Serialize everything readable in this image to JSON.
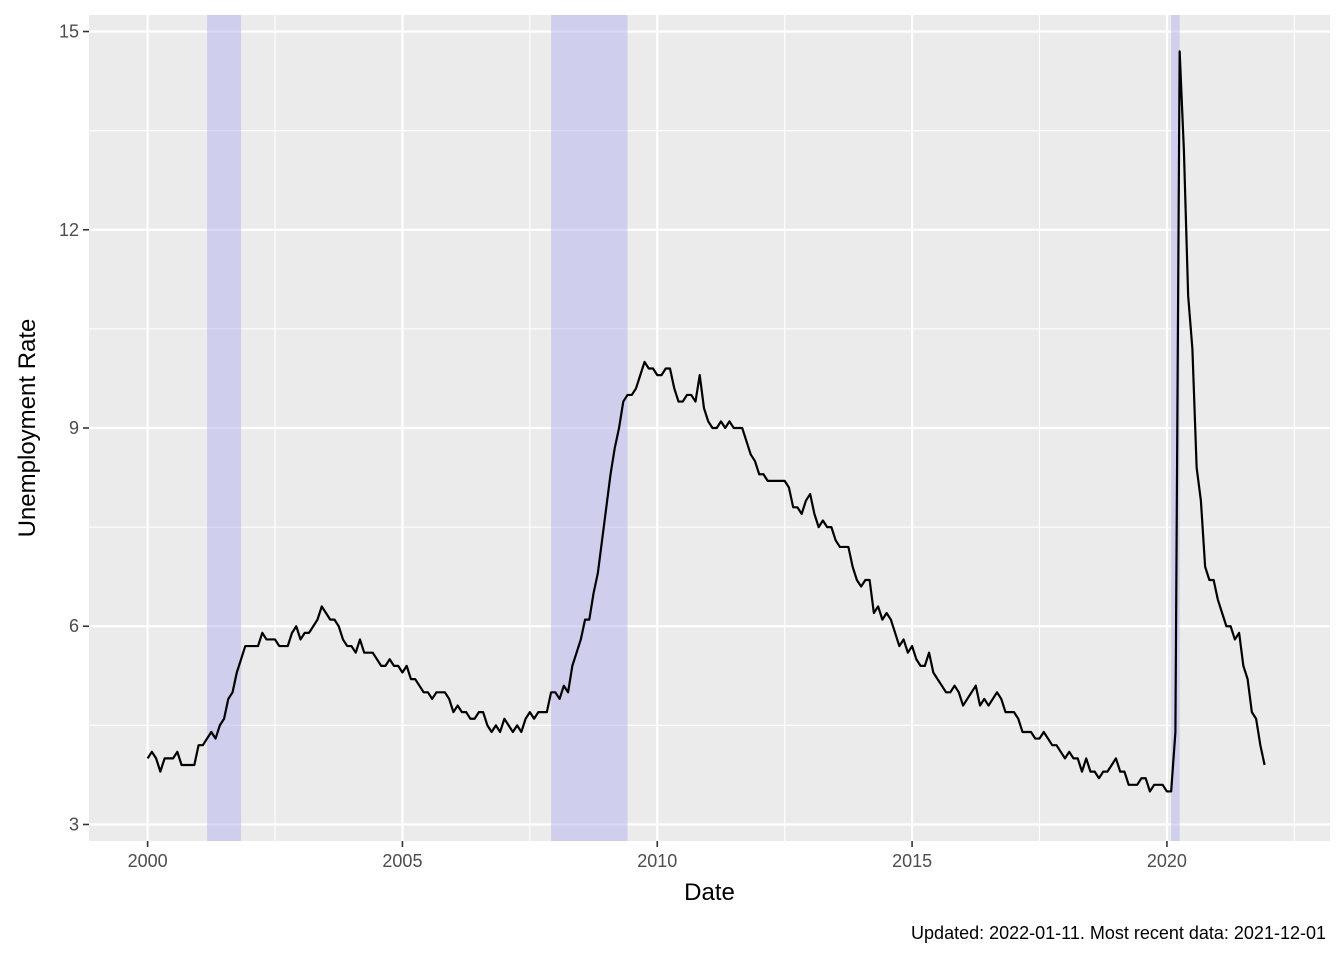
{
  "chart_data": {
    "type": "line",
    "title": "",
    "xlabel": "Date",
    "ylabel": "Unemployment Rate",
    "caption": "Updated: 2022-01-11.  Most recent data: 2021-12-01",
    "x_unit": "year",
    "xlim": [
      1998.85,
      2023.2
    ],
    "ylim": [
      2.75,
      15.25
    ],
    "x_ticks": [
      2000,
      2005,
      2010,
      2015,
      2020
    ],
    "x_tick_labels": [
      "2000",
      "2005",
      "2010",
      "2015",
      "2020"
    ],
    "y_ticks": [
      3,
      6,
      9,
      12,
      15
    ],
    "y_tick_labels": [
      "3",
      "6",
      "9",
      "12",
      "15"
    ],
    "grid": true,
    "legend": "none",
    "colors": {
      "panel": "#ebebeb",
      "grid": "#ffffff",
      "line": "#000000",
      "recession": "#b3b3f0"
    },
    "recessions": [
      {
        "start": "2001-03-01",
        "end": "2001-11-01"
      },
      {
        "start": "2007-12-01",
        "end": "2009-06-01"
      },
      {
        "start": "2020-02-01",
        "end": "2020-04-01"
      }
    ],
    "series": [
      {
        "start": "2000-01",
        "frequency": "monthly",
        "values": [
          4.0,
          4.1,
          4.0,
          3.8,
          4.0,
          4.0,
          4.0,
          4.1,
          3.9,
          3.9,
          3.9,
          3.9,
          4.2,
          4.2,
          4.3,
          4.4,
          4.3,
          4.5,
          4.6,
          4.9,
          5.0,
          5.3,
          5.5,
          5.7,
          5.7,
          5.7,
          5.7,
          5.9,
          5.8,
          5.8,
          5.8,
          5.7,
          5.7,
          5.7,
          5.9,
          6.0,
          5.8,
          5.9,
          5.9,
          6.0,
          6.1,
          6.3,
          6.2,
          6.1,
          6.1,
          6.0,
          5.8,
          5.7,
          5.7,
          5.6,
          5.8,
          5.6,
          5.6,
          5.6,
          5.5,
          5.4,
          5.4,
          5.5,
          5.4,
          5.4,
          5.3,
          5.4,
          5.2,
          5.2,
          5.1,
          5.0,
          5.0,
          4.9,
          5.0,
          5.0,
          5.0,
          4.9,
          4.7,
          4.8,
          4.7,
          4.7,
          4.6,
          4.6,
          4.7,
          4.7,
          4.5,
          4.4,
          4.5,
          4.4,
          4.6,
          4.5,
          4.4,
          4.5,
          4.4,
          4.6,
          4.7,
          4.6,
          4.7,
          4.7,
          4.7,
          5.0,
          5.0,
          4.9,
          5.1,
          5.0,
          5.4,
          5.6,
          5.8,
          6.1,
          6.1,
          6.5,
          6.8,
          7.3,
          7.8,
          8.3,
          8.7,
          9.0,
          9.4,
          9.5,
          9.5,
          9.6,
          9.8,
          10.0,
          9.9,
          9.9,
          9.8,
          9.8,
          9.9,
          9.9,
          9.6,
          9.4,
          9.4,
          9.5,
          9.5,
          9.4,
          9.8,
          9.3,
          9.1,
          9.0,
          9.0,
          9.1,
          9.0,
          9.1,
          9.0,
          9.0,
          9.0,
          8.8,
          8.6,
          8.5,
          8.3,
          8.3,
          8.2,
          8.2,
          8.2,
          8.2,
          8.2,
          8.1,
          7.8,
          7.8,
          7.7,
          7.9,
          8.0,
          7.7,
          7.5,
          7.6,
          7.5,
          7.5,
          7.3,
          7.2,
          7.2,
          7.2,
          6.9,
          6.7,
          6.6,
          6.7,
          6.7,
          6.2,
          6.3,
          6.1,
          6.2,
          6.1,
          5.9,
          5.7,
          5.8,
          5.6,
          5.7,
          5.5,
          5.4,
          5.4,
          5.6,
          5.3,
          5.2,
          5.1,
          5.0,
          5.0,
          5.1,
          5.0,
          4.8,
          4.9,
          5.0,
          5.1,
          4.8,
          4.9,
          4.8,
          4.9,
          5.0,
          4.9,
          4.7,
          4.7,
          4.7,
          4.6,
          4.4,
          4.4,
          4.4,
          4.3,
          4.3,
          4.4,
          4.3,
          4.2,
          4.2,
          4.1,
          4.0,
          4.1,
          4.0,
          4.0,
          3.8,
          4.0,
          3.8,
          3.8,
          3.7,
          3.8,
          3.8,
          3.9,
          4.0,
          3.8,
          3.8,
          3.6,
          3.6,
          3.6,
          3.7,
          3.7,
          3.5,
          3.6,
          3.6,
          3.6,
          3.5,
          3.5,
          4.4,
          14.7,
          13.2,
          11.0,
          10.2,
          8.4,
          7.9,
          6.9,
          6.7,
          6.7,
          6.4,
          6.2,
          6.0,
          6.0,
          5.8,
          5.9,
          5.4,
          5.2,
          4.7,
          4.6,
          4.2,
          3.9
        ]
      }
    ]
  }
}
